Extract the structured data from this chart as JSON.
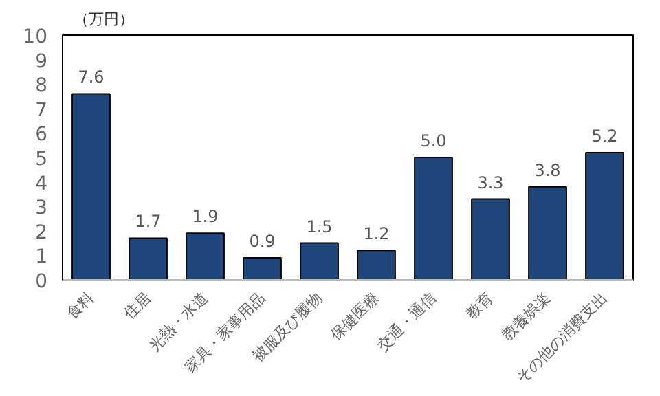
{
  "chart_data": {
    "type": "bar",
    "ylabel": "（万円）",
    "categories": [
      "食料",
      "住居",
      "光熱・水道",
      "家具・家事用品",
      "被服及び履物",
      "保健医療",
      "交通・通信",
      "教育",
      "教養娯楽",
      "その他の消費支出"
    ],
    "values": [
      7.6,
      1.7,
      1.9,
      0.9,
      1.5,
      1.2,
      5.0,
      3.3,
      3.8,
      5.2
    ],
    "value_labels": [
      "7.6",
      "1.7",
      "1.9",
      "0.9",
      "1.5",
      "1.2",
      "5.0",
      "3.3",
      "3.8",
      "5.2"
    ],
    "color": "#1f477c",
    "ylim": [
      0,
      10
    ],
    "yticks": [
      0,
      1,
      2,
      3,
      4,
      5,
      6,
      7,
      8,
      9,
      10
    ],
    "grid": false
  }
}
